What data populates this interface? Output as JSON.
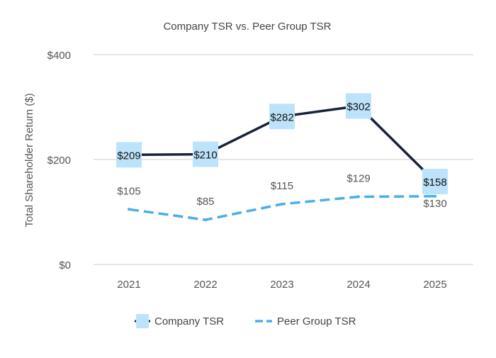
{
  "chart_data": {
    "type": "line",
    "title": "Company TSR vs. Peer Group TSR",
    "xlabel": "",
    "ylabel": "Total Shareholder Return ($)",
    "categories": [
      "2021",
      "2022",
      "2023",
      "2024",
      "2025"
    ],
    "ylim": [
      0,
      400
    ],
    "yticks": [
      0,
      200,
      400
    ],
    "ytick_labels": [
      "$0",
      "$200",
      "$400"
    ],
    "grid": true,
    "legend_position": "bottom",
    "series": [
      {
        "name": "Company TSR",
        "values": [
          209,
          210,
          282,
          302,
          158
        ],
        "labels": [
          "$209",
          "$210",
          "$282",
          "$302",
          "$158"
        ],
        "color": "#17223b",
        "marker_color": "#bde3fb",
        "style": "solid"
      },
      {
        "name": "Peer Group TSR",
        "values": [
          105,
          85,
          115,
          129,
          130
        ],
        "labels": [
          "$105",
          "$85",
          "$115",
          "$129",
          "$130"
        ],
        "color": "#4aaee8",
        "style": "dashed"
      }
    ]
  }
}
